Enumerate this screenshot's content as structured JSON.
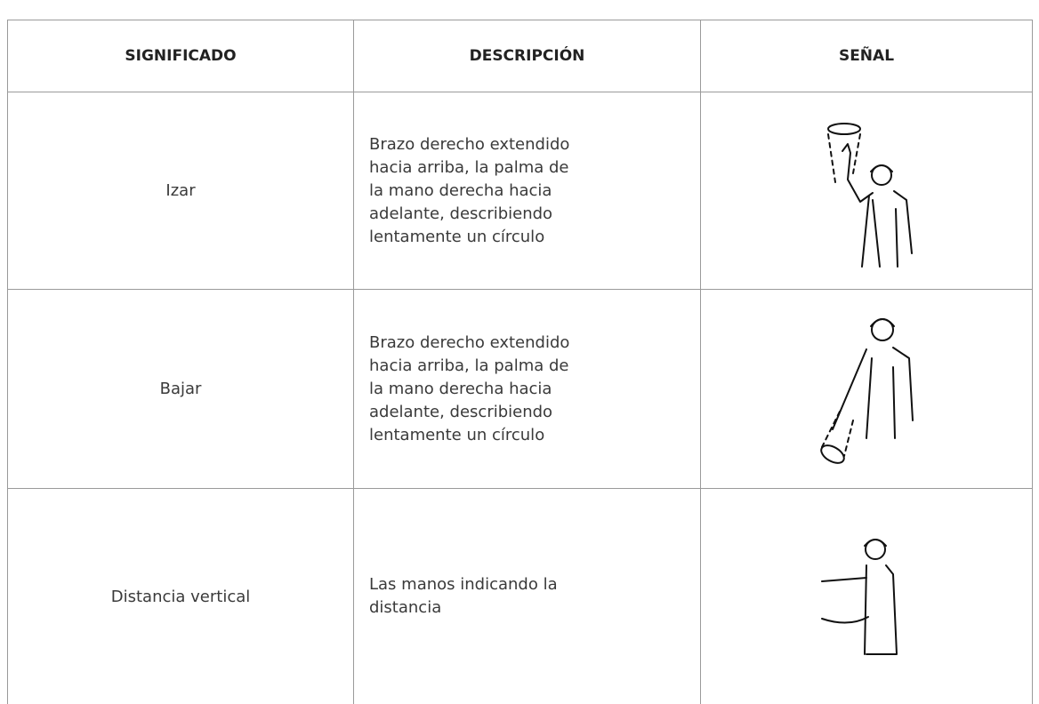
{
  "table": {
    "header": [
      "SIGNIFICADO",
      "DESCRIPCIÓN",
      "SEÑAL"
    ],
    "rows": [
      [
        "Izar",
        "Brazo derecho extendido hacia arriba, la palma de la mano derecha hacia adelante, describiendo lentamente un círculo"
      ],
      [
        "Bajar",
        "Brazo derecho extendido hacia arriba, la palma de la mano derecha hacia adelante, describiendo lentamente un círculo"
      ],
      [
        "Distancia vertical",
        "Las manos indicando la distancia"
      ]
    ]
  }
}
